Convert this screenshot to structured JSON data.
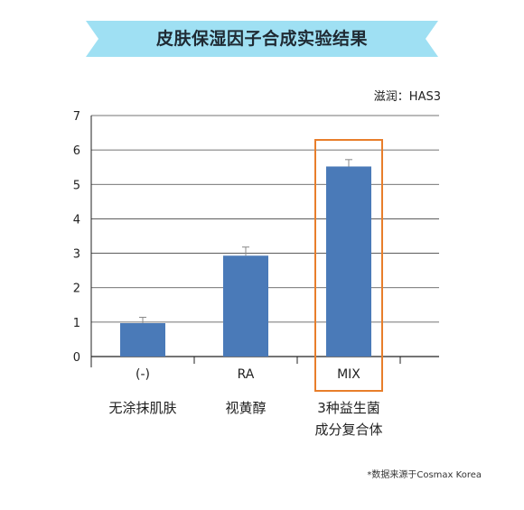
{
  "header": {
    "title": "皮肤保湿因子合成实验结果"
  },
  "unit_label": "滋润：HAS3",
  "captions": [
    {
      "line1": "无涂抹肌肤",
      "line2": ""
    },
    {
      "line1": "视黄醇",
      "line2": ""
    },
    {
      "line1": "3种益生菌",
      "line2": "成分复合体"
    }
  ],
  "source_note": "*数据来源于Cosmax Korea",
  "colors": {
    "bar": "#4a7ab8",
    "grid": "#333333",
    "highlight": "#e87e2b",
    "banner": "#9fe0f3"
  },
  "chart_data": {
    "type": "bar",
    "categories": [
      "(-)",
      "RA",
      "MIX"
    ],
    "values": [
      0.97,
      2.93,
      5.52
    ],
    "errors": [
      0.17,
      0.25,
      0.2
    ],
    "title": "",
    "xlabel": "",
    "ylabel": "",
    "ylim": [
      0,
      7
    ],
    "yticks": [
      0,
      1,
      2,
      3,
      4,
      5,
      6,
      7
    ],
    "grid": true,
    "highlight_category": "MIX"
  }
}
